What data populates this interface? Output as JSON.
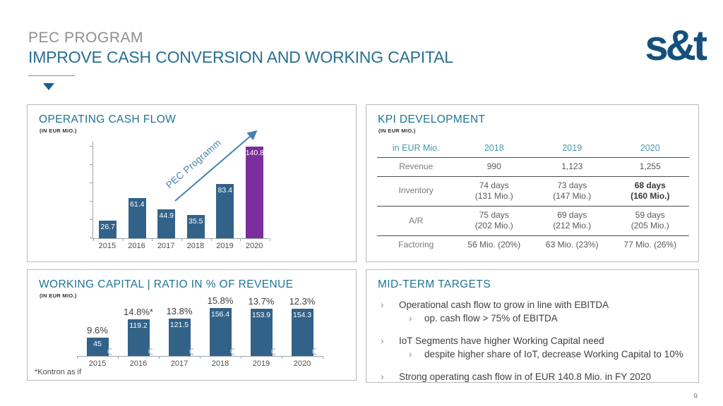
{
  "page": {
    "number": "9"
  },
  "header": {
    "kicker": "PEC PROGRAM",
    "title": "IMPROVE CASH CONVERSION AND WORKING CAPITAL",
    "logo_text": "s&t"
  },
  "colors": {
    "accent_teal": "#1e7494",
    "bar_blue": "#336289",
    "bar_purple": "#7c2e9d",
    "arrow_blue": "#4682ac",
    "logo_navy": "#15507c"
  },
  "chart_data": [
    {
      "id": "operating_cash_flow",
      "type": "bar",
      "title": "OPERATING CASH FLOW",
      "subtitle": "(IN EUR MIO.)",
      "categories": [
        "2015",
        "2016",
        "2017",
        "2018",
        "2019",
        "2020"
      ],
      "values": [
        26.7,
        61.4,
        44.9,
        35.5,
        83.4,
        140.8
      ],
      "bar_colors": [
        "#336289",
        "#336289",
        "#336289",
        "#336289",
        "#336289",
        "#7c2e9d"
      ],
      "annotation": "PEC Programm",
      "xlabel": "",
      "ylabel": "",
      "ylim": [
        0,
        150
      ],
      "y_axis_tick_labels": false,
      "value_label_position": "inside-top",
      "legend": "none",
      "grid": "off"
    },
    {
      "id": "working_capital_ratio",
      "type": "bar",
      "title": "WORKING CAPITAL | RATIO IN % OF REVENUE",
      "subtitle": "(IN EUR MIO.)",
      "categories": [
        "2015",
        "2016",
        "2017",
        "2018",
        "2019",
        "2020"
      ],
      "values": [
        45,
        119.2,
        121.5,
        156.4,
        153.9,
        154.3
      ],
      "pct_labels": [
        "9.6%",
        "14.8%*",
        "13.8%",
        "15.8%",
        "13.7%",
        "12.3%"
      ],
      "footnote": "*Kontron as if",
      "xlabel": "",
      "ylabel": "",
      "ylim": [
        0,
        170
      ],
      "value_label_position": "inside-top",
      "legend": "none",
      "grid": "off"
    },
    {
      "id": "kpi_development",
      "type": "table",
      "title": "KPI DEVELOPMENT",
      "subtitle": "(IN EUR MIO.)",
      "columns": [
        "in EUR Mio.",
        "2018",
        "2019",
        "2020"
      ],
      "rows": [
        {
          "label": "Revenue",
          "cells": [
            "990",
            "1,123",
            "1,255"
          ],
          "bold_last": false
        },
        {
          "label": "Inventory",
          "cells": [
            "74 days\n(131 Mio.)",
            "73 days\n(147 Mio.)",
            "68 days\n(160 Mio.)"
          ],
          "bold_last": true
        },
        {
          "label": "A/R",
          "cells": [
            "75 days\n(202 Mio.)",
            "69 days\n(212 Mio.)",
            "59 days\n(205 Mio.)"
          ],
          "bold_last": false
        },
        {
          "label": "Factoring",
          "cells": [
            "56 Mio. (20%)",
            "63 Mio. (23%)",
            "77 Mio. (26%)"
          ],
          "bold_last": false
        }
      ]
    }
  ],
  "targets": {
    "title": "MID-TERM TARGETS",
    "items": [
      {
        "text": "Operational cash flow to grow in line with EBITDA",
        "sub": [
          "op. cash flow > 75% of EBITDA"
        ]
      },
      {
        "text": "IoT Segments have higher Working Capital need",
        "sub": [
          "despite higher share of IoT, decrease Working Capital to 10%"
        ]
      },
      {
        "text": "Strong operating cash flow in of EUR 140.8 Mio. in FY 2020",
        "sub": []
      }
    ],
    "bullet_glyph": "›"
  }
}
